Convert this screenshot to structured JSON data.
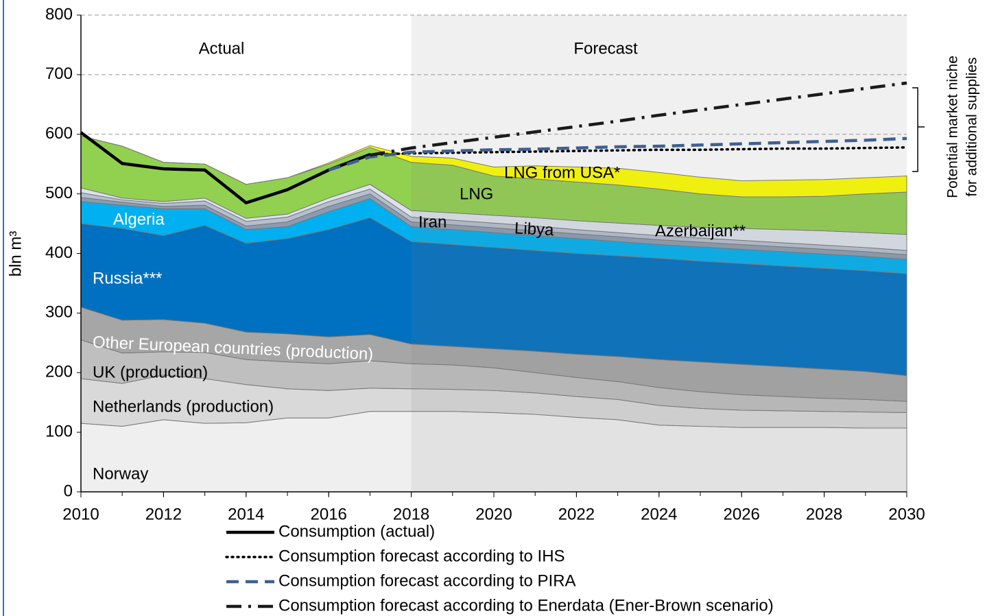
{
  "chart_data": {
    "type": "stacked_area",
    "ylabel": "bln m³",
    "region_labels": [
      "Actual",
      "Forecast"
    ],
    "shade_from": 2018,
    "annotation": [
      "Potential market niche",
      "for additional supplies"
    ],
    "x": [
      2010,
      2011,
      2012,
      2013,
      2014,
      2015,
      2016,
      2017,
      2018,
      2019,
      2020,
      2021,
      2022,
      2023,
      2024,
      2025,
      2026,
      2027,
      2028,
      2029,
      2030
    ],
    "xlim": [
      2010,
      2030
    ],
    "xticks": [
      2010,
      2012,
      2014,
      2016,
      2018,
      2020,
      2022,
      2024,
      2026,
      2028,
      2030
    ],
    "ylim": [
      0,
      800
    ],
    "yticks": [
      0,
      100,
      200,
      300,
      400,
      500,
      600,
      700,
      800
    ],
    "grid": true,
    "series": [
      {
        "name": "Norway",
        "color": "#efefef",
        "values": [
          115,
          110,
          121,
          115,
          116,
          124,
          124,
          135,
          135,
          135,
          133,
          130,
          125,
          121,
          112,
          110,
          108,
          108,
          108,
          107,
          107
        ]
      },
      {
        "name": "Netherlands (production)",
        "color": "#d9d9d9",
        "values": [
          75,
          72,
          75,
          75,
          64,
          49,
          46,
          39,
          38,
          37,
          37,
          36,
          35,
          34,
          33,
          30,
          29,
          28,
          27,
          27,
          26
        ]
      },
      {
        "name": "UK (production)",
        "color": "#bfbfbf",
        "values": [
          65,
          51,
          39,
          44,
          42,
          45,
          45,
          46,
          42,
          41,
          38,
          34,
          32,
          30,
          30,
          28,
          26,
          24,
          22,
          21,
          19
        ]
      },
      {
        "name": "Other European countries (production)",
        "color": "#a6a6a6",
        "values": [
          55,
          55,
          54,
          49,
          46,
          47,
          45,
          44,
          33,
          31,
          32,
          36,
          39,
          42,
          47,
          50,
          51,
          50,
          49,
          47,
          43
        ]
      },
      {
        "name": "Russia***",
        "color": "#0070c0",
        "values": [
          140,
          154,
          141,
          164,
          149,
          160,
          180,
          196,
          172,
          171,
          170,
          169,
          169,
          169,
          170,
          169,
          169,
          169,
          169,
          169,
          171
        ]
      },
      {
        "name": "Algeria",
        "color": "#00b0f0",
        "values": [
          37,
          39,
          45,
          28,
          23,
          20,
          30,
          32,
          25,
          25,
          25,
          25,
          25,
          24,
          23,
          24,
          24,
          24,
          24,
          24,
          24
        ]
      },
      {
        "name": "Iran",
        "color": "#8c9bb0",
        "values": [
          7,
          5,
          4,
          6,
          6,
          8,
          9,
          8,
          8,
          8,
          8,
          8,
          8,
          8,
          8,
          8,
          8,
          8,
          8,
          8,
          8
        ]
      },
      {
        "name": "Libya",
        "color": "#b4bfcf",
        "values": [
          8,
          4,
          5,
          7,
          8,
          8,
          8,
          8,
          8,
          8,
          8,
          8,
          7,
          7,
          7,
          7,
          7,
          7,
          7,
          7,
          7
        ]
      },
      {
        "name": "Azerbaijan**",
        "color": "#dde3ec",
        "values": [
          8,
          3,
          3,
          5,
          5,
          5,
          6,
          8,
          11,
          12,
          13,
          14,
          15,
          16,
          17,
          18,
          20,
          22,
          24,
          25,
          27
        ]
      },
      {
        "name": "LNG",
        "color": "#92d050",
        "values": [
          87,
          87,
          66,
          57,
          57,
          61,
          57,
          62,
          81,
          80,
          66,
          65,
          65,
          64,
          61,
          56,
          53,
          55,
          58,
          65,
          71
        ]
      },
      {
        "name": "LNG from USA*",
        "color": "#ffff00",
        "values": [
          0,
          0,
          0,
          0,
          0,
          0,
          2,
          3,
          10,
          12,
          15,
          22,
          25,
          28,
          28,
          28,
          27,
          28,
          28,
          27,
          27
        ]
      }
    ],
    "lines": [
      {
        "name": "Consumption (actual)",
        "color": "#000000",
        "dash": "solid",
        "values": [
          603,
          551,
          542,
          540,
          485,
          507,
          540,
          566,
          null,
          null,
          null,
          null,
          null,
          null,
          null,
          null,
          null,
          null,
          null,
          null,
          null
        ]
      },
      {
        "name": "Consumption forecast according to IHS",
        "color": "#000000",
        "dash": "dotted",
        "values": [
          null,
          null,
          null,
          null,
          null,
          null,
          null,
          566,
          568,
          569,
          570,
          571,
          572,
          573,
          574,
          574,
          575,
          576,
          576,
          577,
          578
        ]
      },
      {
        "name": "Consumption forecast according to PIRA",
        "color": "#3f5f8f",
        "dash": "dashed",
        "values": [
          null,
          null,
          null,
          null,
          null,
          null,
          540,
          562,
          570,
          572,
          574,
          575,
          577,
          579,
          580,
          582,
          584,
          586,
          588,
          590,
          593
        ]
      },
      {
        "name": "Consumption forecast according to Enerdata (Ener-Brown scenario)",
        "color": "#1a1a1a",
        "dash": "dashdot",
        "values": [
          null,
          null,
          null,
          null,
          null,
          null,
          null,
          565,
          577,
          586,
          595,
          604,
          613,
          622,
          632,
          641,
          650,
          659,
          668,
          677,
          686
        ]
      }
    ]
  }
}
